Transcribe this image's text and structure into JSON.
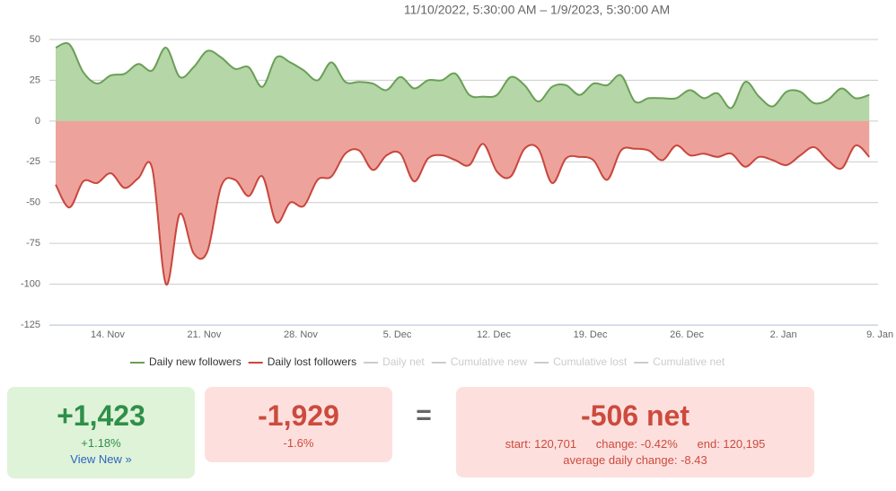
{
  "chart_data": {
    "type": "area",
    "title": "11/10/2022, 5:30:00 AM – 1/9/2023, 5:30:00 AM",
    "categories": [
      null,
      null,
      null,
      null,
      "14. Nov",
      null,
      null,
      null,
      null,
      null,
      null,
      "21. Nov",
      null,
      null,
      null,
      null,
      null,
      null,
      "28. Nov",
      null,
      null,
      null,
      null,
      null,
      null,
      "5. Dec",
      null,
      null,
      null,
      null,
      null,
      null,
      "12. Dec",
      null,
      null,
      null,
      null,
      null,
      null,
      "19. Dec",
      null,
      null,
      null,
      null,
      null,
      null,
      "26. Dec",
      null,
      null,
      null,
      null,
      null,
      null,
      "2. Jan",
      null,
      null,
      null,
      null,
      null,
      null,
      "9. Jan"
    ],
    "series": [
      {
        "name": "Daily new followers",
        "color": "#6a9f58",
        "fill": "#b5d6a7",
        "visible": true,
        "values": [
          45,
          47,
          30,
          23,
          28,
          29,
          35,
          31,
          45,
          27,
          33,
          43,
          39,
          32,
          33,
          21,
          39,
          36,
          31,
          25,
          36,
          24,
          24,
          23,
          19,
          27,
          20,
          25,
          25,
          29,
          16,
          15,
          16,
          27,
          22,
          12,
          21,
          22,
          16,
          23,
          22,
          28,
          12,
          14,
          14,
          14,
          19,
          14,
          17,
          8,
          24,
          15,
          9,
          18,
          18,
          11,
          13,
          20,
          14,
          16,
          null
        ]
      },
      {
        "name": "Daily lost followers",
        "color": "#c9463d",
        "fill": "#eda39b",
        "visible": true,
        "values": [
          -39,
          -53,
          -37,
          -38,
          -32,
          -41,
          -35,
          -29,
          -100,
          -57,
          -81,
          -80,
          -40,
          -36,
          -46,
          -34,
          -62,
          -50,
          -52,
          -36,
          -34,
          -20,
          -18,
          -30,
          -21,
          -20,
          -37,
          -23,
          -21,
          -24,
          -27,
          -14,
          -31,
          -34,
          -17,
          -17,
          -38,
          -23,
          -22,
          -24,
          -36,
          -18,
          -17,
          -18,
          -24,
          -15,
          -21,
          -20,
          -22,
          -20,
          -28,
          -22,
          -24,
          -27,
          -21,
          -16,
          -24,
          -29,
          -15,
          -22,
          null
        ]
      },
      {
        "name": "Daily net",
        "visible": false
      },
      {
        "name": "Cumulative new",
        "visible": false
      },
      {
        "name": "Cumulative lost",
        "visible": false
      },
      {
        "name": "Cumulative net",
        "visible": false
      }
    ],
    "ylim": [
      -125,
      50
    ],
    "yticks": [
      50,
      25,
      0,
      -25,
      -50,
      -75,
      -100,
      -125
    ],
    "grid": true,
    "legend": "bottom"
  },
  "cards": {
    "new": {
      "value": "+1,423",
      "change": "+1.18%",
      "link": "View New »"
    },
    "lost": {
      "value": "-1,929",
      "change": "-1.6%"
    },
    "equals": "=",
    "net": {
      "value": "-506 net",
      "start": "start: 120,701",
      "change": "change: -0.42%",
      "end": "end: 120,195",
      "average": "average daily change: -8.43"
    }
  }
}
